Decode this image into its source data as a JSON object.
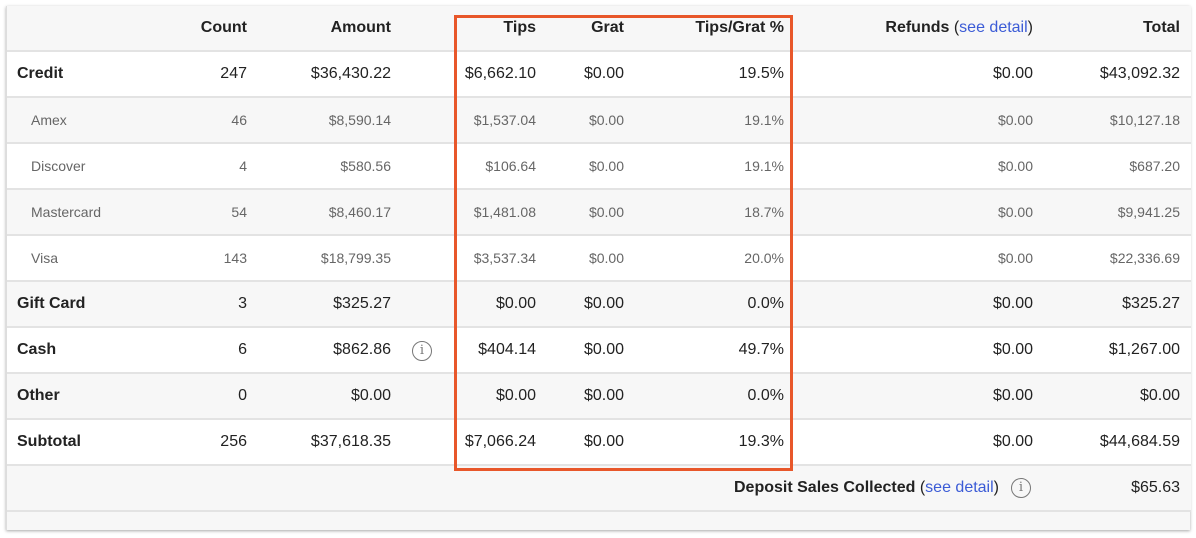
{
  "header": {
    "label": "",
    "count": "Count",
    "amount": "Amount",
    "tips": "Tips",
    "grat": "Grat",
    "pct": "Tips/Grat %",
    "refunds": "Refunds",
    "see_detail": "see detail",
    "total": "Total"
  },
  "rows": [
    {
      "label": "Credit",
      "count": "247",
      "amount": "$36,430.22",
      "tips": "$6,662.10",
      "grat": "$0.00",
      "pct": "19.5%",
      "refunds": "$0.00",
      "total": "$43,092.32",
      "sub": false,
      "info": false
    },
    {
      "label": "Amex",
      "count": "46",
      "amount": "$8,590.14",
      "tips": "$1,537.04",
      "grat": "$0.00",
      "pct": "19.1%",
      "refunds": "$0.00",
      "total": "$10,127.18",
      "sub": true,
      "info": false
    },
    {
      "label": "Discover",
      "count": "4",
      "amount": "$580.56",
      "tips": "$106.64",
      "grat": "$0.00",
      "pct": "19.1%",
      "refunds": "$0.00",
      "total": "$687.20",
      "sub": true,
      "info": false
    },
    {
      "label": "Mastercard",
      "count": "54",
      "amount": "$8,460.17",
      "tips": "$1,481.08",
      "grat": "$0.00",
      "pct": "18.7%",
      "refunds": "$0.00",
      "total": "$9,941.25",
      "sub": true,
      "info": false
    },
    {
      "label": "Visa",
      "count": "143",
      "amount": "$18,799.35",
      "tips": "$3,537.34",
      "grat": "$0.00",
      "pct": "20.0%",
      "refunds": "$0.00",
      "total": "$22,336.69",
      "sub": true,
      "info": false
    },
    {
      "label": "Gift Card",
      "count": "3",
      "amount": "$325.27",
      "tips": "$0.00",
      "grat": "$0.00",
      "pct": "0.0%",
      "refunds": "$0.00",
      "total": "$325.27",
      "sub": false,
      "info": false
    },
    {
      "label": "Cash",
      "count": "6",
      "amount": "$862.86",
      "tips": "$404.14",
      "grat": "$0.00",
      "pct": "49.7%",
      "refunds": "$0.00",
      "total": "$1,267.00",
      "sub": false,
      "info": true
    },
    {
      "label": "Other",
      "count": "0",
      "amount": "$0.00",
      "tips": "$0.00",
      "grat": "$0.00",
      "pct": "0.0%",
      "refunds": "$0.00",
      "total": "$0.00",
      "sub": false,
      "info": false
    },
    {
      "label": "Subtotal",
      "count": "256",
      "amount": "$37,618.35",
      "tips": "$7,066.24",
      "grat": "$0.00",
      "pct": "19.3%",
      "refunds": "$0.00",
      "total": "$44,684.59",
      "sub": false,
      "info": false
    }
  ],
  "deposit": {
    "label": "Deposit Sales Collected",
    "see_detail": "see detail",
    "total": "$65.63"
  },
  "icons": {
    "info": "info-circle-icon"
  },
  "colors": {
    "highlight": "#e8572a",
    "link": "#3b5bd6"
  }
}
